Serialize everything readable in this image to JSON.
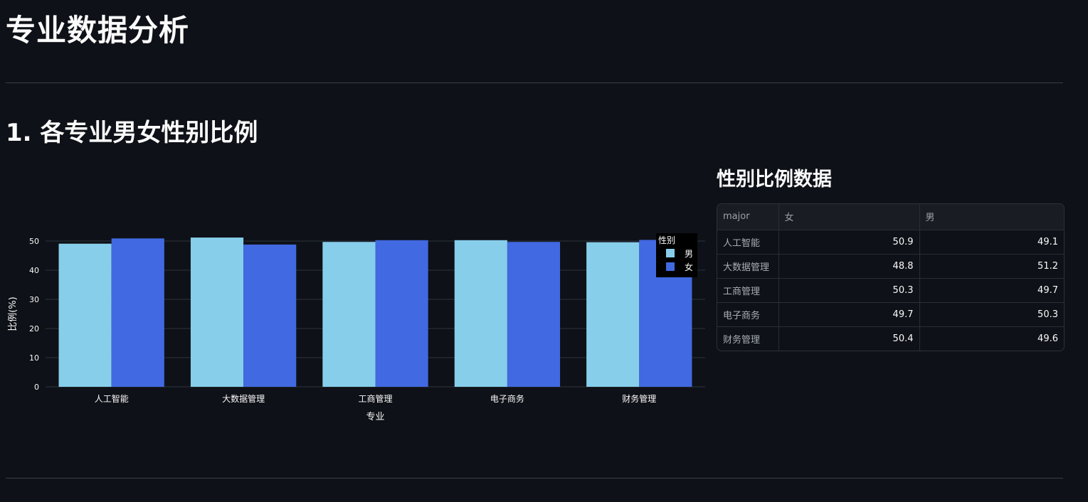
{
  "page": {
    "title": "专业数据分析",
    "section1_title": "1. 各专业男女性别比例",
    "table_title": "性别比例数据"
  },
  "table": {
    "headers": [
      "major",
      "女",
      "男"
    ],
    "rows": [
      {
        "major": "人工智能",
        "female": "50.9",
        "male": "49.1"
      },
      {
        "major": "大数据管理",
        "female": "48.8",
        "male": "51.2"
      },
      {
        "major": "工商管理",
        "female": "50.3",
        "male": "49.7"
      },
      {
        "major": "电子商务",
        "female": "49.7",
        "male": "50.3"
      },
      {
        "major": "财务管理",
        "female": "50.4",
        "male": "49.6"
      }
    ]
  },
  "chart_data": {
    "type": "bar",
    "categories": [
      "人工智能",
      "大数据管理",
      "工商管理",
      "电子商务",
      "财务管理"
    ],
    "series": [
      {
        "name": "男",
        "values": [
          49.1,
          51.2,
          49.7,
          50.3,
          49.6
        ],
        "color": "#87ceeb"
      },
      {
        "name": "女",
        "values": [
          50.9,
          48.8,
          50.3,
          49.7,
          50.4
        ],
        "color": "#4169e1"
      }
    ],
    "title": "",
    "xlabel": "专业",
    "ylabel": "比例(%)",
    "ylim": [
      0,
      50
    ],
    "yticks": [
      0,
      10,
      20,
      30,
      40,
      50
    ],
    "grid": true,
    "legend": {
      "title": "性别",
      "placement": "top-right"
    }
  },
  "colors": {
    "background": "#0e1117",
    "grid": "#2f333c",
    "text": "#fafafa"
  }
}
